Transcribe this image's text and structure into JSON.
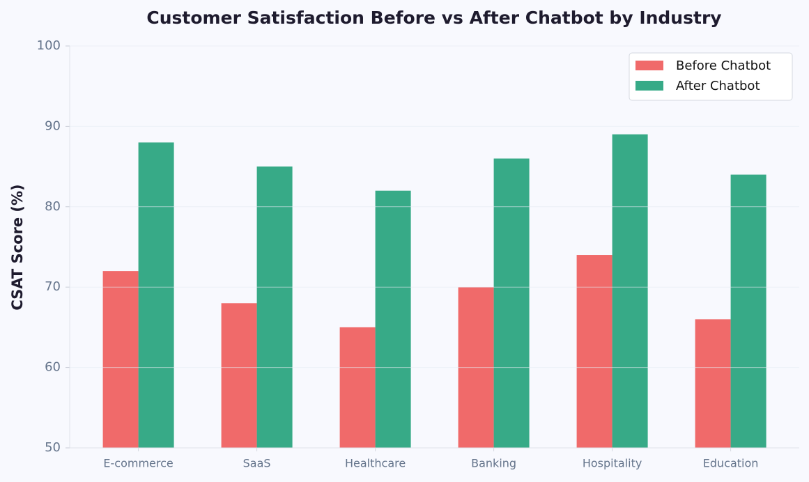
{
  "chart_data": {
    "type": "bar",
    "title": "Customer Satisfaction Before vs After Chatbot by Industry",
    "y_label": "CSAT Score (%)",
    "categories": [
      "E-commerce",
      "SaaS",
      "Healthcare",
      "Banking",
      "Hospitality",
      "Education"
    ],
    "series": [
      {
        "name": "Before Chatbot",
        "color": "#f06a6a",
        "values": [
          72,
          68,
          65,
          70,
          74,
          66
        ]
      },
      {
        "name": "After Chatbot",
        "color": "#37aa87",
        "values": [
          88,
          85,
          82,
          86,
          89,
          84
        ]
      }
    ],
    "ylim": [
      50,
      100
    ],
    "yticks": [
      50,
      60,
      70,
      80,
      90,
      100
    ],
    "grid": true,
    "legend": "upper right"
  }
}
